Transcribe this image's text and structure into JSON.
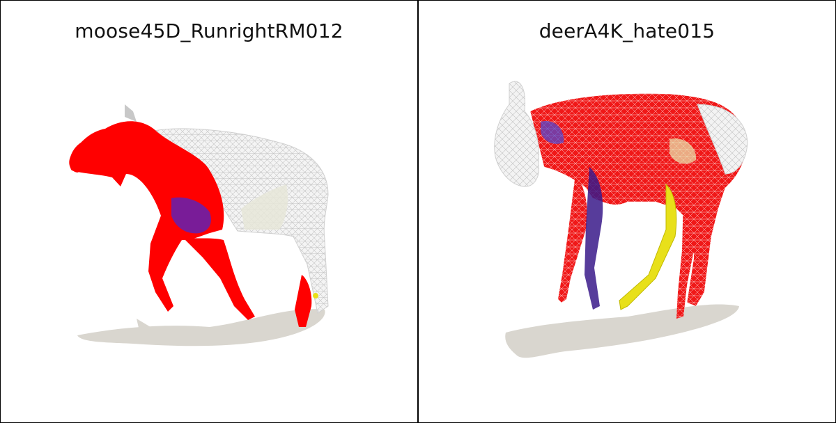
{
  "panels": [
    {
      "title": "moose45D_RunrightRM012"
    },
    {
      "title": "deerA4K_hate015"
    }
  ],
  "colors": {
    "background": "#ffffff",
    "border": "#000000",
    "shadow": "#d9d6cf",
    "mesh_white": "#f2f2f2",
    "mesh_line": "#bdbdbd",
    "red": "#ff0000",
    "purple": "#6a1fa8",
    "yellow": "#e8e01a"
  }
}
